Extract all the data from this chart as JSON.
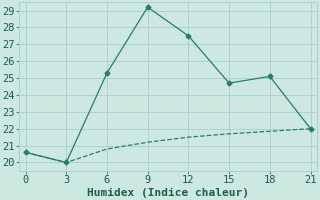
{
  "line1_x": [
    0,
    3,
    6,
    9,
    12,
    15,
    18,
    21
  ],
  "line1_y": [
    20.6,
    20.0,
    25.3,
    29.2,
    27.5,
    24.7,
    25.1,
    22.0
  ],
  "line2_x": [
    0,
    3,
    6,
    9,
    12,
    15,
    18,
    21
  ],
  "line2_y": [
    20.6,
    20.0,
    20.8,
    21.2,
    21.5,
    21.7,
    21.85,
    22.0
  ],
  "line_color": "#2a7d65",
  "xlabel": "Humidex (Indice chaleur)",
  "xlim": [
    -0.5,
    21.5
  ],
  "ylim": [
    19.5,
    29.5
  ],
  "yticks": [
    20,
    21,
    22,
    23,
    24,
    25,
    26,
    27,
    28,
    29
  ],
  "xticks": [
    0,
    3,
    6,
    9,
    12,
    15,
    18,
    21
  ],
  "bg_color": "#cce8e0",
  "grid_color": "#aacfc8",
  "font_color": "#1a5c4e",
  "xlabel_fontsize": 8,
  "tick_fontsize": 7.5
}
